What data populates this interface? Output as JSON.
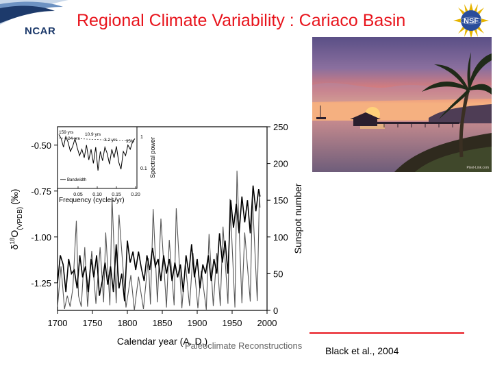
{
  "slide": {
    "title": "Regional Climate Variability : Cariaco Basin",
    "ncar_label": "NCAR",
    "nsf_label": "NSF",
    "photo_credit": "Pixel-Link.com",
    "footer_faded": "Paleoclimate Reconstructions",
    "citation": "Black et al., 2004",
    "colors": {
      "title": "#e8141c",
      "ncar_blue": "#1d3a6b",
      "nsf_blue": "#2a4d9b"
    }
  },
  "chart_data": {
    "type": "line",
    "title": "",
    "xlabel": "Calendar year (A. D.)",
    "ylabel_left": "δ18O (VPDB) (‰)",
    "ylabel_left_parts": {
      "delta": "δ",
      "sup": "18",
      "o": "O",
      "sub": "(VPDB)",
      "unit": "(‰)"
    },
    "ylabel_right": "Sunspot number",
    "xlim": [
      1700,
      2000
    ],
    "ylim_left": [
      -1.4,
      -0.4
    ],
    "ylim_left_inverted": true,
    "ylim_right": [
      0,
      250
    ],
    "x_ticks": [
      "1700",
      "1750",
      "1800",
      "1850",
      "1900",
      "1950",
      "2000"
    ],
    "y_left_ticks": [
      "-0.50",
      "-0.75",
      "-1.00",
      "-1.25"
    ],
    "y_right_ticks": [
      "0",
      "50",
      "100",
      "150",
      "200",
      "250"
    ],
    "series": [
      {
        "name": "Cariaco Basin δ18O",
        "axis": "left",
        "color": "#000000",
        "x": [
          1700,
          1704,
          1708,
          1712,
          1716,
          1720,
          1724,
          1728,
          1732,
          1736,
          1740,
          1744,
          1748,
          1752,
          1756,
          1760,
          1764,
          1768,
          1772,
          1776,
          1780,
          1784,
          1788,
          1792,
          1796,
          1800,
          1804,
          1808,
          1812,
          1816,
          1820,
          1824,
          1828,
          1832,
          1836,
          1840,
          1844,
          1848,
          1852,
          1856,
          1860,
          1864,
          1868,
          1872,
          1876,
          1880,
          1884,
          1888,
          1892,
          1896,
          1900,
          1904,
          1908,
          1912,
          1916,
          1920,
          1924,
          1928,
          1932,
          1936,
          1940,
          1944,
          1948,
          1952,
          1956,
          1960,
          1964,
          1968,
          1972,
          1976,
          1980,
          1984,
          1988,
          1990
        ],
        "values": [
          -1.25,
          -1.1,
          -1.15,
          -1.3,
          -1.12,
          -1.2,
          -1.18,
          -1.28,
          -1.1,
          -1.22,
          -1.16,
          -1.3,
          -1.12,
          -1.22,
          -1.1,
          -1.32,
          -1.24,
          -1.14,
          -1.26,
          -1.16,
          -1.3,
          -1.04,
          -1.28,
          -1.2,
          -1.35,
          -1.02,
          -1.14,
          -1.08,
          -1.18,
          -1.08,
          -1.17,
          -1.24,
          -1.1,
          -1.18,
          -1.06,
          -1.16,
          -1.12,
          -1.24,
          -1.1,
          -1.2,
          -1.12,
          -1.24,
          -1.14,
          -1.22,
          -1.15,
          -1.3,
          -1.1,
          -1.2,
          -1.04,
          -1.22,
          -1.12,
          -1.28,
          -1.15,
          -1.2,
          -1.1,
          -1.24,
          -1.12,
          -1.2,
          -0.98,
          -1.14,
          -1.02,
          -1.2,
          -0.8,
          -0.95,
          -0.82,
          -0.98,
          -0.78,
          -0.92,
          -0.8,
          -0.98,
          -0.72,
          -0.86,
          -0.74,
          -0.78
        ]
      },
      {
        "name": "Sunspot number",
        "axis": "right",
        "color": "#555555",
        "x": [
          1700,
          1705,
          1710,
          1714,
          1718,
          1722,
          1727,
          1730,
          1734,
          1739,
          1743,
          1749,
          1755,
          1761,
          1766,
          1769,
          1775,
          1778,
          1784,
          1788,
          1798,
          1805,
          1810,
          1816,
          1823,
          1830,
          1833,
          1837,
          1843,
          1848,
          1856,
          1860,
          1867,
          1870,
          1878,
          1883,
          1889,
          1894,
          1901,
          1906,
          1913,
          1917,
          1923,
          1928,
          1933,
          1937,
          1944,
          1947,
          1954,
          1957,
          1964,
          1968,
          1976,
          1979,
          1986,
          1989,
          1990
        ],
        "values": [
          5,
          60,
          2,
          20,
          5,
          30,
          122,
          20,
          5,
          86,
          5,
          81,
          9,
          86,
          11,
          106,
          7,
          154,
          10,
          130,
          4,
          48,
          0,
          46,
          2,
          71,
          8,
          138,
          11,
          125,
          4,
          96,
          7,
          139,
          3,
          64,
          6,
          78,
          3,
          54,
          1,
          104,
          6,
          78,
          6,
          114,
          9,
          152,
          4,
          190,
          10,
          106,
          12,
          155,
          13,
          158,
          140
        ]
      }
    ],
    "inset": {
      "xlabel": "Frequency (cycles/yr)",
      "ylabel": "Spectral power",
      "x_ticks": [
        "0.05",
        "0.10",
        "0.15",
        "0.20"
      ],
      "y_ticks": [
        "1",
        "0.1"
      ],
      "xlim": [
        0,
        0.2
      ],
      "annotations": [
        "159 yrs",
        "24 yrs",
        "10.9 yrs",
        "3.2 yrs",
        "95%"
      ],
      "legend": "Bandwidth",
      "spectrum": {
        "x": [
          0.0,
          0.006,
          0.012,
          0.018,
          0.024,
          0.03,
          0.036,
          0.042,
          0.048,
          0.054,
          0.06,
          0.066,
          0.072,
          0.078,
          0.084,
          0.09,
          0.096,
          0.102,
          0.108,
          0.114,
          0.12,
          0.126,
          0.132,
          0.138,
          0.144,
          0.15,
          0.156,
          0.162,
          0.168,
          0.174,
          0.18,
          0.186,
          0.192,
          0.198
        ],
        "values": [
          0.9,
          0.8,
          0.6,
          0.85,
          0.72,
          0.5,
          0.62,
          0.8,
          0.58,
          0.4,
          0.55,
          0.35,
          0.65,
          0.3,
          0.55,
          0.22,
          0.6,
          0.05,
          0.5,
          0.28,
          0.6,
          0.45,
          0.2,
          0.55,
          0.35,
          0.62,
          0.25,
          0.08,
          0.5,
          0.4,
          0.65,
          0.55,
          0.72,
          0.8
        ]
      }
    }
  }
}
